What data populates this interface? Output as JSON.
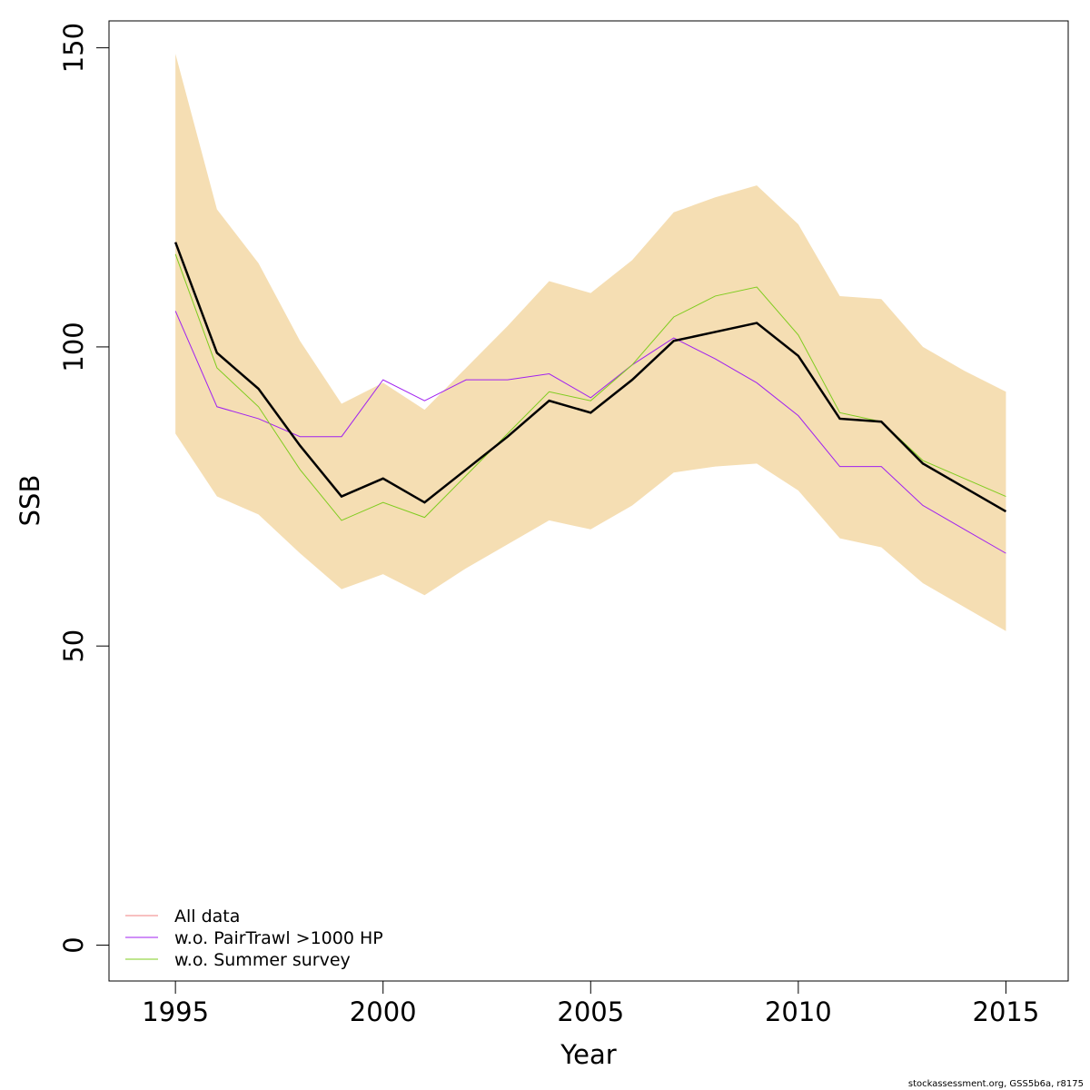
{
  "chart_data": {
    "type": "line",
    "xlabel": "Year",
    "ylabel": "SSB",
    "xlim": [
      1993.4,
      2016.5
    ],
    "ylim": [
      -6,
      154.5
    ],
    "x_ticks": [
      1995,
      2000,
      2005,
      2010,
      2015
    ],
    "y_ticks": [
      0,
      50,
      100,
      150
    ],
    "grid": false,
    "legend_position": "bottom-left",
    "x": [
      1995,
      1996,
      1997,
      1998,
      1999,
      2000,
      2001,
      2002,
      2003,
      2004,
      2005,
      2006,
      2007,
      2008,
      2009,
      2010,
      2011,
      2012,
      2013,
      2014,
      2015
    ],
    "confidence_band": {
      "color": "#f5deb3",
      "upper": [
        149,
        123,
        114,
        101,
        90.5,
        94,
        89.5,
        96.5,
        103.5,
        111,
        109,
        114.5,
        122.5,
        125,
        127,
        120.5,
        108.5,
        108,
        100,
        96,
        92.5
      ],
      "lower": [
        85.5,
        75,
        72,
        65.5,
        59.5,
        62,
        58.5,
        63,
        67,
        71,
        69.5,
        73.5,
        79,
        80,
        80.5,
        76,
        68,
        66.5,
        60.5,
        56.5,
        52.5
      ]
    },
    "series": [
      {
        "name": "All data",
        "color": "#f08080",
        "values": [
          117.5,
          99,
          93,
          83.5,
          75,
          78,
          74,
          79.5,
          85,
          91,
          89,
          94.5,
          101,
          102.5,
          104,
          98.5,
          88,
          87.5,
          80.5,
          76.5,
          72.5
        ]
      },
      {
        "name": "w.o. PairTrawl >1000 HP",
        "color": "#a020f0",
        "values": [
          106,
          90,
          88,
          85,
          85,
          94.5,
          91,
          94.5,
          94.5,
          95.5,
          91.5,
          97,
          101.5,
          98,
          94,
          88.5,
          80,
          80,
          73.5,
          69.5,
          65.5
        ]
      },
      {
        "name": "w.o. Summer survey",
        "color": "#7fcc1f",
        "values": [
          115.5,
          96.5,
          90,
          79.5,
          71,
          74,
          71.5,
          78.5,
          85.5,
          92.5,
          91,
          97,
          105,
          108.5,
          110,
          102,
          89,
          87.5,
          81,
          78,
          75
        ]
      }
    ],
    "main_line": {
      "color": "#000000",
      "values": [
        117.5,
        99,
        93,
        83.5,
        75,
        78,
        74,
        79.5,
        85,
        91,
        89,
        94.5,
        101,
        102.5,
        104,
        98.5,
        88,
        87.5,
        80.5,
        76.5,
        72.5
      ]
    },
    "credit": "stockassessment.org, GSS5b6a, r8175"
  }
}
